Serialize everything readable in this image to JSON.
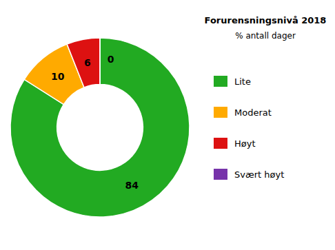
{
  "chart_data": {
    "type": "donut",
    "title": "Forurensningsnivå 2018",
    "subtitle": "% antall dager",
    "categories": [
      "Lite",
      "Moderat",
      "Høyt",
      "Svært høyt"
    ],
    "values": [
      84,
      10,
      6,
      0
    ],
    "colors": [
      "#22aa22",
      "#ffaa00",
      "#dd1111",
      "#7733aa"
    ],
    "data_labels": true,
    "legend": "right"
  }
}
